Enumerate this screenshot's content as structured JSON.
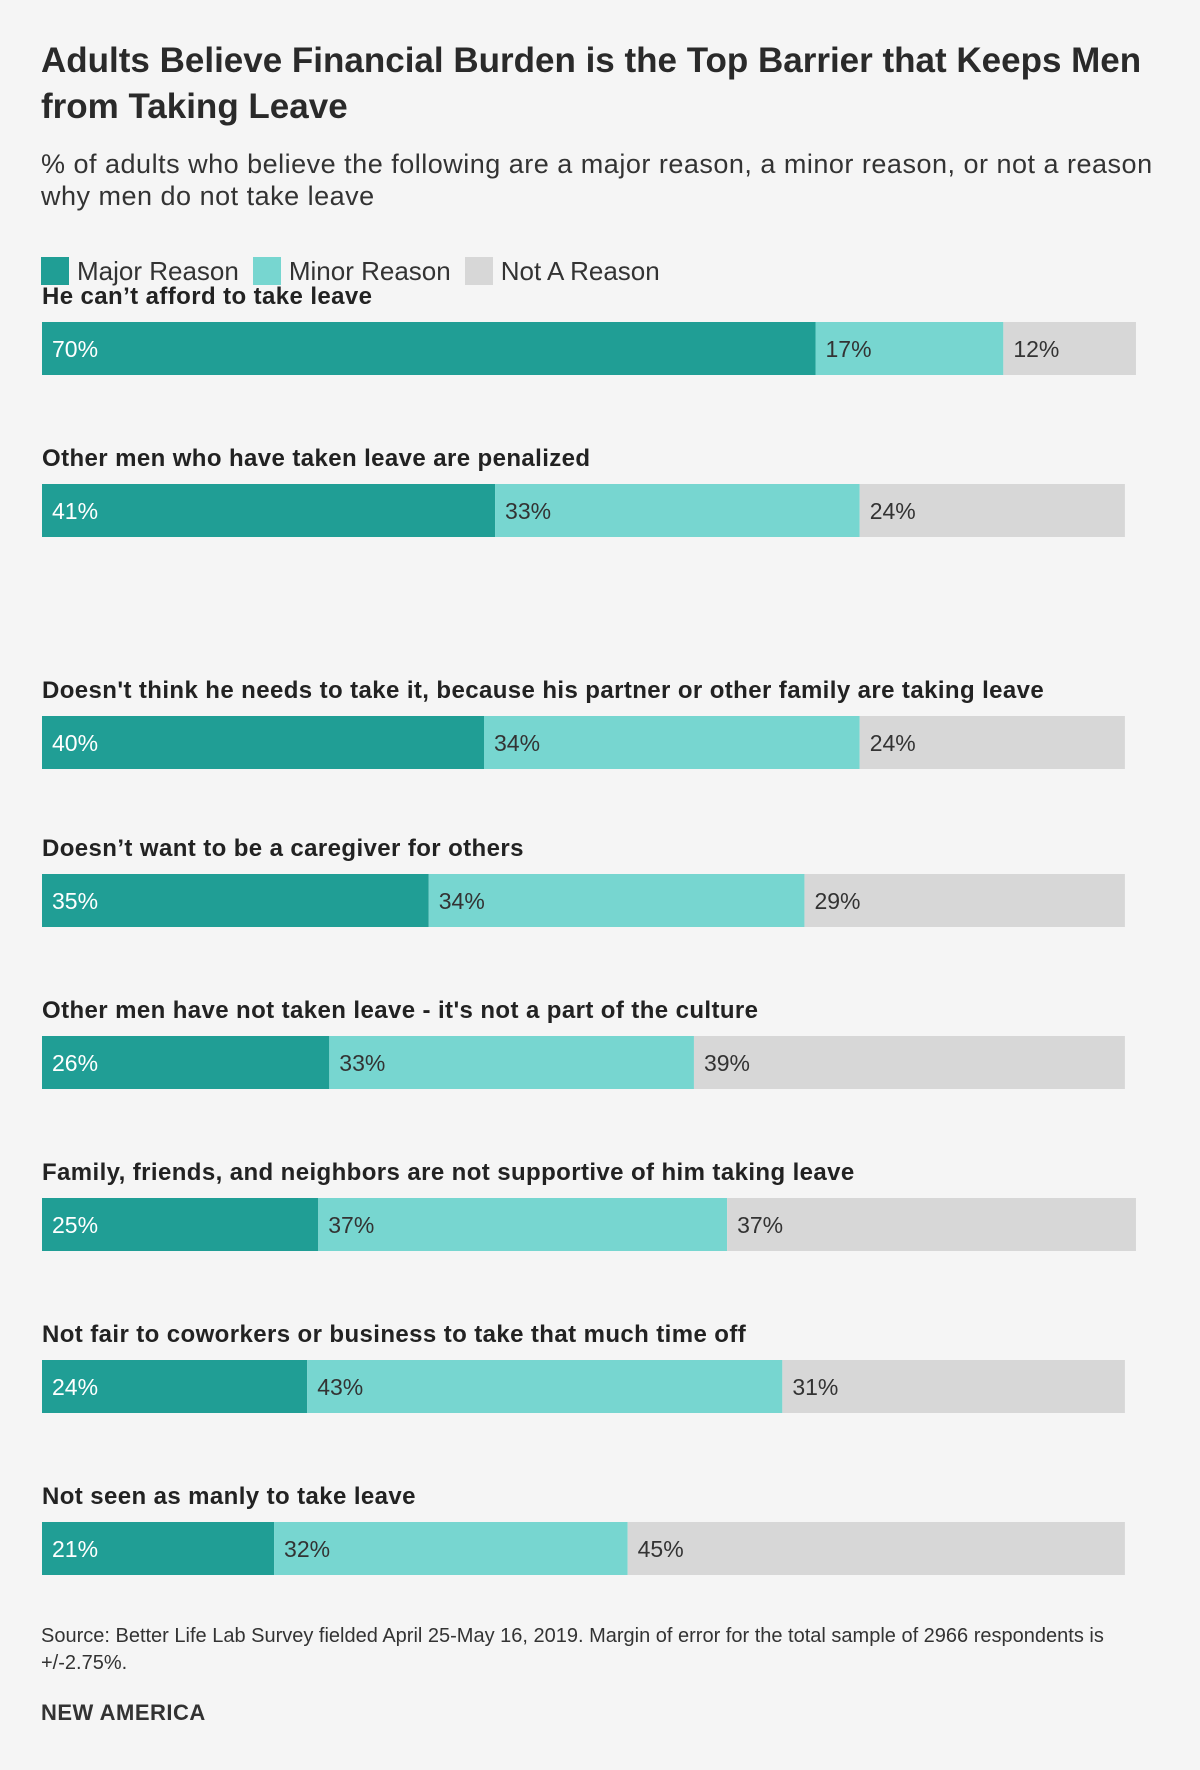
{
  "title": "Adults Believe Financial Burden is the Top Barrier that Keeps Men from Taking Leave",
  "subtitle": "% of adults who believe the following are a major reason, a minor reason, or not a reason why men do not take leave",
  "legend": [
    {
      "label": "Major Reason",
      "color": "#209e95"
    },
    {
      "label": "Minor Reason",
      "color": "#77d6d0"
    },
    {
      "label": "Not A Reason",
      "color": "#d7d7d7"
    }
  ],
  "chart_data": {
    "type": "bar",
    "orientation": "horizontal",
    "stacked": true,
    "categories": [
      "He can’t afford to take leave",
      "Other men who have taken leave are penalized",
      "Doesn't think he needs to take it, because his partner or other family are taking leave",
      "Doesn’t want to be a caregiver for others",
      "Other men have not taken leave - it's not a part of the culture",
      "Family, friends, and neighbors are not supportive of him taking leave",
      "Not fair to coworkers or business to take that much time off",
      "Not seen as manly to take leave"
    ],
    "series": [
      {
        "name": "Major Reason",
        "color": "#209e95",
        "values": [
          70,
          41,
          40,
          35,
          26,
          25,
          24,
          21
        ],
        "labels": [
          "70%",
          "41%",
          "40%",
          "35%",
          "26%",
          "25%",
          "24%",
          "21%"
        ]
      },
      {
        "name": "Minor Reason",
        "color": "#77d6d0",
        "values": [
          17,
          33,
          34,
          34,
          33,
          37,
          43,
          32
        ],
        "labels": [
          "17%",
          "33%",
          "34%",
          "34%",
          "33%",
          "37%",
          "43%",
          "32%"
        ]
      },
      {
        "name": "Not A Reason",
        "color": "#d7d7d7",
        "values": [
          12,
          24,
          24,
          29,
          39,
          37,
          31,
          45
        ],
        "labels": [
          "12%",
          "24%",
          "24%",
          "29%",
          "39%",
          "37%",
          "31%",
          "45%"
        ]
      }
    ],
    "xlim": [
      0,
      100
    ],
    "grid": false,
    "legend_position": "top-left"
  },
  "source": "Source: Better Life Lab Survey fielded April 25-May 16, 2019. Margin of error for the total sample of 2966 respondents is +/-2.75%.",
  "brand": "NEW AMERICA"
}
